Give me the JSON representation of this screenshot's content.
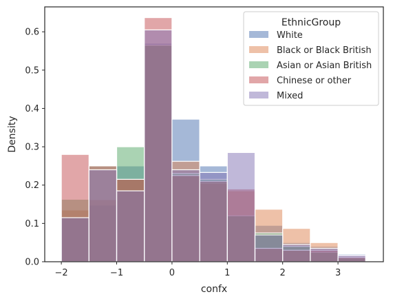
{
  "chart_data": {
    "type": "bar",
    "subtype": "overlaid-histogram",
    "xlabel": "confx",
    "ylabel": "Density",
    "xlim": [
      -2.3,
      3.82
    ],
    "ylim": [
      0,
      0.665
    ],
    "xticks": [
      -2,
      -1,
      0,
      1,
      2,
      3
    ],
    "yticks": [
      0.0,
      0.1,
      0.2,
      0.3,
      0.4,
      0.5,
      0.6
    ],
    "grid": false,
    "legend": {
      "title": "EthnicGroup",
      "position": "top-right"
    },
    "bin_edges": [
      -2.0,
      -1.5,
      -1.0,
      -0.5,
      0.0,
      0.5,
      1.0,
      1.5,
      2.0,
      2.5,
      3.0,
      3.5
    ],
    "series": [
      {
        "name": "White",
        "color": "#4c72b0",
        "values": [
          0.115,
          0.148,
          0.25,
          0.57,
          0.372,
          0.25,
          0.12,
          0.095,
          0.05,
          0.04,
          0.02
        ]
      },
      {
        "name": "Black or Black British",
        "color": "#dd8452",
        "values": [
          0.135,
          0.162,
          0.215,
          0.565,
          0.262,
          0.205,
          0.185,
          0.137,
          0.087,
          0.05,
          0.015
        ]
      },
      {
        "name": "Asian or Asian British",
        "color": "#55a868",
        "values": [
          0.163,
          0.25,
          0.3,
          0.565,
          0.23,
          0.215,
          0.12,
          0.075,
          0.04,
          0.025,
          0.01
        ]
      },
      {
        "name": "Chinese or other",
        "color": "#c44e52",
        "values": [
          0.28,
          0.25,
          0.215,
          0.637,
          0.225,
          0.21,
          0.19,
          0.035,
          0.03,
          0.03,
          0.012
        ]
      },
      {
        "name": "Mixed",
        "color": "#8172b3",
        "values": [
          0.115,
          0.24,
          0.185,
          0.605,
          0.24,
          0.233,
          0.285,
          0.07,
          0.045,
          0.035,
          0.017
        ]
      }
    ]
  }
}
